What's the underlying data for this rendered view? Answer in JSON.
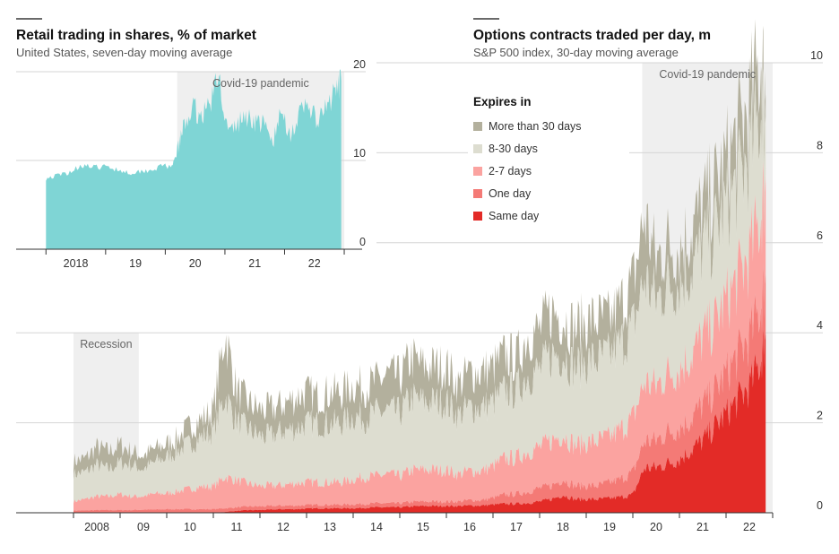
{
  "colors": {
    "more_than_30": "#b3b09d",
    "days_8_30": "#ddddd0",
    "days_2_7": "#fba3a0",
    "one_day": "#f47a76",
    "same_day": "#e32b27",
    "retail_area": "#7fd5d5",
    "shading": "#efefef",
    "grid": "#d6d6d6",
    "axis": "#333333"
  },
  "chart_data": [
    {
      "id": "options",
      "type": "area",
      "stacked": true,
      "title": "Options contracts traded per day, m",
      "subtitle": "S&P 500 index, 30-day moving average",
      "legend_title": "Expires in",
      "legend_position": "top-left",
      "xlim": [
        2007.5,
        2023.0
      ],
      "ylim": [
        0,
        10
      ],
      "yticks": [
        0,
        2,
        4,
        6,
        8,
        10
      ],
      "xticks": [
        {
          "label": "2008",
          "value": 2008.5
        },
        {
          "label": "09",
          "value": 2009.5
        },
        {
          "label": "10",
          "value": 2010.5
        },
        {
          "label": "11",
          "value": 2011.5
        },
        {
          "label": "12",
          "value": 2012.5
        },
        {
          "label": "13",
          "value": 2013.5
        },
        {
          "label": "14",
          "value": 2014.5
        },
        {
          "label": "15",
          "value": 2015.5
        },
        {
          "label": "16",
          "value": 2016.5
        },
        {
          "label": "17",
          "value": 2017.5
        },
        {
          "label": "18",
          "value": 2018.5
        },
        {
          "label": "19",
          "value": 2019.5
        },
        {
          "label": "20",
          "value": 2020.5
        },
        {
          "label": "21",
          "value": 2021.5
        },
        {
          "label": "22",
          "value": 2022.5
        }
      ],
      "shaded_periods": [
        {
          "label": "Recession",
          "start": 2008.0,
          "end": 2009.4
        },
        {
          "label": "Covid-19 pandemic",
          "start": 2020.2,
          "end": 2023.0
        }
      ],
      "x": [
        2008.0,
        2008.25,
        2008.5,
        2008.75,
        2009.0,
        2009.25,
        2009.5,
        2009.75,
        2010.0,
        2010.25,
        2010.5,
        2010.75,
        2011.0,
        2011.25,
        2011.5,
        2011.75,
        2012.0,
        2012.25,
        2012.5,
        2012.75,
        2013.0,
        2013.25,
        2013.5,
        2013.75,
        2014.0,
        2014.25,
        2014.5,
        2014.75,
        2015.0,
        2015.25,
        2015.5,
        2015.75,
        2016.0,
        2016.25,
        2016.5,
        2016.75,
        2017.0,
        2017.25,
        2017.5,
        2017.75,
        2018.0,
        2018.25,
        2018.5,
        2018.75,
        2019.0,
        2019.25,
        2019.5,
        2019.75,
        2020.0,
        2020.25,
        2020.5,
        2020.75,
        2021.0,
        2021.25,
        2021.5,
        2021.75,
        2022.0,
        2022.25,
        2022.5,
        2022.75,
        2022.85
      ],
      "series": [
        {
          "name": "Same day",
          "key": "same_day",
          "values": [
            0.0,
            0.0,
            0.0,
            0.0,
            0.0,
            0.0,
            0.0,
            0.0,
            0.0,
            0.0,
            0.0,
            0.0,
            0.0,
            0.02,
            0.04,
            0.06,
            0.06,
            0.07,
            0.08,
            0.08,
            0.09,
            0.1,
            0.1,
            0.1,
            0.1,
            0.11,
            0.12,
            0.12,
            0.12,
            0.14,
            0.15,
            0.15,
            0.15,
            0.15,
            0.16,
            0.16,
            0.18,
            0.2,
            0.2,
            0.22,
            0.25,
            0.3,
            0.4,
            0.3,
            0.3,
            0.3,
            0.32,
            0.35,
            0.4,
            1.0,
            1.0,
            1.1,
            1.2,
            1.4,
            1.6,
            1.9,
            2.2,
            2.5,
            2.8,
            3.4,
            4.0
          ]
        },
        {
          "name": "One day",
          "key": "one_day",
          "values": [
            0.05,
            0.05,
            0.06,
            0.06,
            0.06,
            0.06,
            0.07,
            0.07,
            0.08,
            0.08,
            0.08,
            0.08,
            0.08,
            0.08,
            0.08,
            0.08,
            0.08,
            0.08,
            0.08,
            0.08,
            0.08,
            0.08,
            0.08,
            0.08,
            0.09,
            0.09,
            0.09,
            0.09,
            0.09,
            0.1,
            0.1,
            0.1,
            0.1,
            0.1,
            0.12,
            0.12,
            0.15,
            0.2,
            0.22,
            0.25,
            0.3,
            0.3,
            0.35,
            0.3,
            0.3,
            0.3,
            0.35,
            0.4,
            0.5,
            0.6,
            0.6,
            0.7,
            0.7,
            0.7,
            0.8,
            0.8,
            0.9,
            1.0,
            1.1,
            1.2,
            1.3
          ]
        },
        {
          "name": "2-7 days",
          "key": "days_2_7",
          "values": [
            0.2,
            0.25,
            0.3,
            0.3,
            0.35,
            0.3,
            0.3,
            0.35,
            0.35,
            0.4,
            0.45,
            0.5,
            0.5,
            0.7,
            0.6,
            0.5,
            0.45,
            0.45,
            0.45,
            0.5,
            0.5,
            0.5,
            0.5,
            0.5,
            0.55,
            0.6,
            0.6,
            0.65,
            0.6,
            0.7,
            0.7,
            0.7,
            0.7,
            0.6,
            0.65,
            0.65,
            0.7,
            0.8,
            0.8,
            0.9,
            0.9,
            1.0,
            1.0,
            0.9,
            0.95,
            1.0,
            1.0,
            1.1,
            1.2,
            1.3,
            1.2,
            1.3,
            1.3,
            1.4,
            1.5,
            1.5,
            1.6,
            1.7,
            1.8,
            2.0,
            2.1
          ]
        },
        {
          "name": "8-30 days",
          "key": "days_8_30",
          "values": [
            0.6,
            0.6,
            0.7,
            0.6,
            0.7,
            0.7,
            0.6,
            0.7,
            0.8,
            0.9,
            1.0,
            1.1,
            1.2,
            1.8,
            1.3,
            1.2,
            1.1,
            1.1,
            1.2,
            1.2,
            1.3,
            1.3,
            1.3,
            1.3,
            1.4,
            1.3,
            1.4,
            1.4,
            1.4,
            1.6,
            1.5,
            1.5,
            1.5,
            1.3,
            1.4,
            1.4,
            1.4,
            1.5,
            1.5,
            1.7,
            1.7,
            1.9,
            1.8,
            1.7,
            1.8,
            1.8,
            1.8,
            1.9,
            2.0,
            2.3,
            1.9,
            2.0,
            1.9,
            1.9,
            2.0,
            2.0,
            2.1,
            2.1,
            2.2,
            2.3,
            1.4
          ]
        },
        {
          "name": "More than 30 days",
          "key": "more_than_30",
          "values": [
            0.3,
            0.3,
            0.4,
            0.4,
            0.4,
            0.3,
            0.3,
            0.3,
            0.3,
            0.3,
            0.4,
            0.4,
            0.5,
            1.4,
            0.7,
            0.6,
            0.6,
            0.6,
            0.6,
            0.7,
            0.7,
            0.6,
            0.7,
            0.7,
            0.7,
            0.7,
            0.7,
            0.8,
            0.8,
            0.9,
            0.8,
            0.8,
            0.8,
            0.7,
            0.8,
            0.8,
            0.8,
            0.8,
            0.7,
            0.9,
            0.9,
            1.0,
            0.8,
            0.9,
            0.9,
            0.9,
            0.8,
            0.9,
            1.0,
            1.4,
            0.9,
            0.9,
            0.8,
            0.9,
            0.9,
            1.0,
            1.0,
            1.1,
            1.1,
            1.2,
            0.5
          ]
        }
      ]
    },
    {
      "id": "retail",
      "type": "area",
      "title": "Retail trading in shares, % of market",
      "subtitle": "United States, seven-day moving average",
      "xlim": [
        2017.5,
        2023.3
      ],
      "ylim": [
        0,
        20
      ],
      "yticks": [
        0,
        10,
        20
      ],
      "xticks": [
        {
          "label": "2018",
          "value": 2018.5
        },
        {
          "label": "19",
          "value": 2019.5
        },
        {
          "label": "20",
          "value": 2020.5
        },
        {
          "label": "21",
          "value": 2021.5
        },
        {
          "label": "22",
          "value": 2022.5
        }
      ],
      "shaded_periods": [
        {
          "label": "Covid-19 pandemic",
          "start": 2020.2,
          "end": 2023.0
        }
      ],
      "x": [
        2018.0,
        2018.2,
        2018.4,
        2018.6,
        2018.8,
        2019.0,
        2019.2,
        2019.4,
        2019.6,
        2019.8,
        2020.0,
        2020.1,
        2020.2,
        2020.3,
        2020.45,
        2020.6,
        2020.75,
        2020.9,
        2021.05,
        2021.2,
        2021.35,
        2021.5,
        2021.65,
        2021.8,
        2021.95,
        2022.1,
        2022.25,
        2022.4,
        2022.55,
        2022.7,
        2022.85,
        2022.95
      ],
      "series": [
        {
          "name": "",
          "values": [
            8.0,
            8.3,
            8.7,
            9.5,
            9.2,
            9.3,
            9.0,
            8.6,
            8.8,
            9.0,
            9.5,
            9.0,
            11.0,
            13.5,
            16.0,
            15.0,
            16.5,
            19.5,
            13.0,
            14.0,
            15.0,
            14.5,
            14.0,
            12.0,
            15.5,
            13.0,
            15.0,
            16.5,
            14.0,
            16.0,
            17.5,
            19.0
          ]
        }
      ]
    }
  ]
}
